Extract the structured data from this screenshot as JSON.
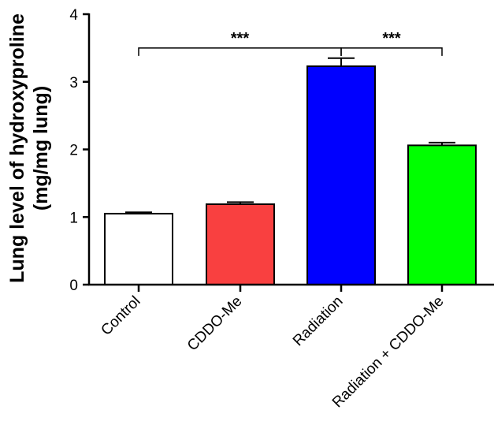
{
  "chart_data": {
    "type": "bar",
    "categories": [
      "Control",
      "CDDO-Me",
      "Radiation",
      "Radiation + CDDO-Me"
    ],
    "values": [
      1.05,
      1.19,
      3.23,
      2.06
    ],
    "errors": [
      0.02,
      0.03,
      0.12,
      0.04
    ],
    "colors": [
      "#ffffff",
      "#f94040",
      "#0000ff",
      "#00ff00"
    ],
    "ylabel_line1": "Lung level of hydroxyproline",
    "ylabel_line2": "(mg/mg lung)",
    "xlabel": "",
    "ylim": [
      0,
      4
    ],
    "yticks": [
      0,
      1,
      2,
      3,
      4
    ],
    "ytick_labels": [
      "0",
      "1",
      "2",
      "3",
      "4"
    ],
    "significance": [
      {
        "from": 0,
        "to": 2,
        "label": "***",
        "level": 3.5
      },
      {
        "from": 2,
        "to": 3,
        "label": "***",
        "level": 3.5
      }
    ]
  }
}
